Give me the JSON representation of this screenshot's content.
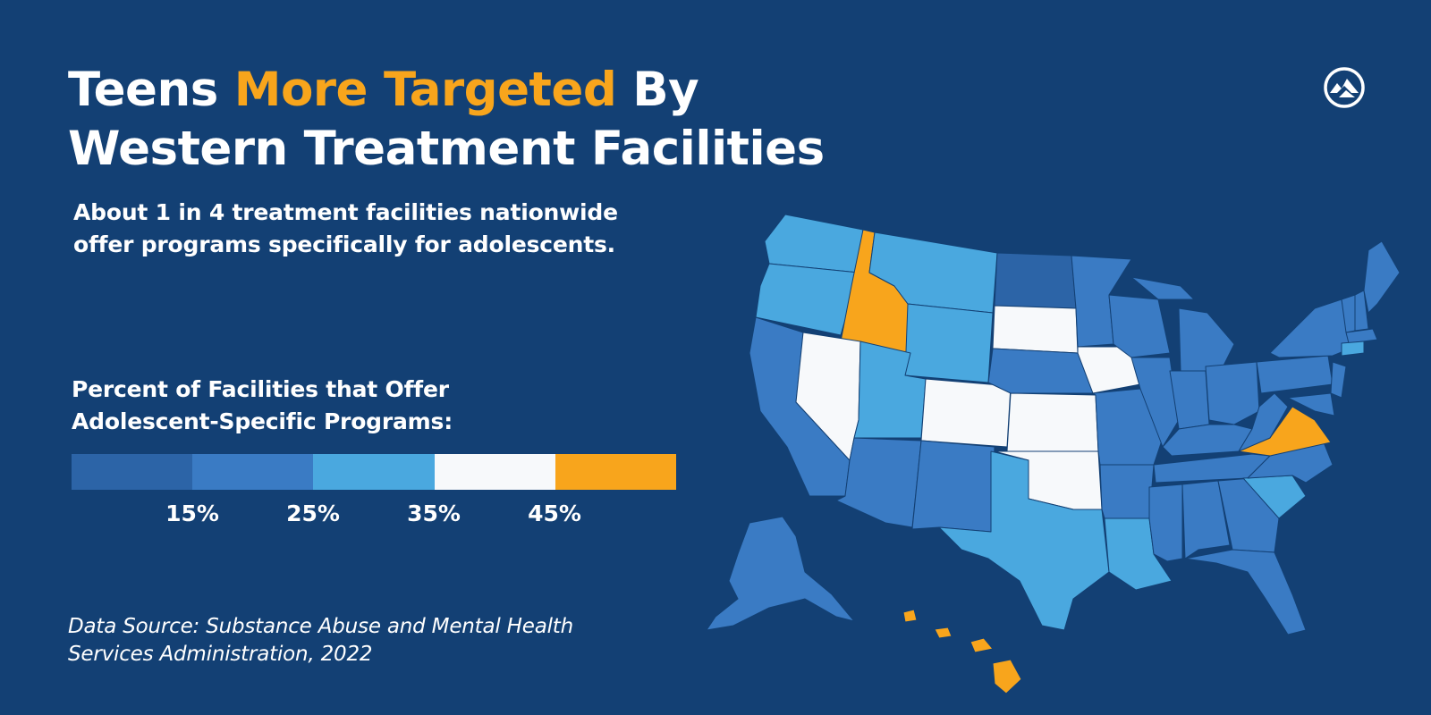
{
  "title": {
    "line1_part1": "Teens ",
    "line1_highlight": "More Targeted",
    "line1_part2": " By",
    "line2": "Western Treatment Facilities"
  },
  "subtitle": {
    "line1": "About 1 in 4 treatment facilities nationwide",
    "line2": "offer programs specifically for adolescents."
  },
  "legend": {
    "title_line1": "Percent of Facilities that Offer",
    "title_line2": "Adolescent-Specific Programs:",
    "ticks": [
      "15%",
      "25%",
      "35%",
      "45%"
    ],
    "colors": [
      "#2c64a7",
      "#3a7bc4",
      "#4aa8df",
      "#f7f9fb",
      "#f8a51c"
    ]
  },
  "source": {
    "line1": "Data Source: Substance Abuse and Mental Health",
    "line2": "Services Administration, 2022"
  },
  "logo_icon": "mountain-logo-icon",
  "colors": {
    "background": "#134074",
    "highlight": "#f8a51c"
  },
  "map_data": {
    "region": "United States",
    "fill_by_state_class": {
      "below_15": "#2c64a7",
      "15_to_25": "#3a7bc4",
      "25_to_35": "#4aa8df",
      "35_to_45": "#f7f9fb",
      "above_45": "#f8a51c"
    }
  }
}
